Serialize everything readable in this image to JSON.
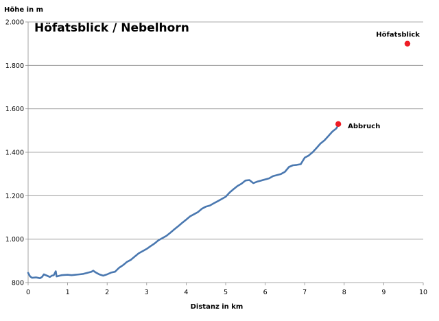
{
  "chart_data": {
    "type": "line",
    "title": "Höfatsblick / Nebelhorn",
    "xlabel": "Distanz in km",
    "ylabel": "Höhe in m",
    "xlim": [
      0,
      10
    ],
    "ylim": [
      800,
      2000
    ],
    "x_ticks": [
      "0",
      "1",
      "2",
      "3",
      "4",
      "5",
      "6",
      "7",
      "8",
      "9",
      "10"
    ],
    "y_ticks": [
      "800",
      "1.000",
      "1.200",
      "1.400",
      "1.600",
      "1.800",
      "2.000"
    ],
    "grid": "horizontal",
    "line_color": "#4a78b0",
    "marker_color": "#ee1c25",
    "series": [
      {
        "x": [
          0,
          0.05,
          0.1,
          0.2,
          0.3,
          0.35,
          0.4,
          0.5,
          0.55,
          0.6,
          0.65,
          0.7,
          0.72,
          0.8,
          0.85,
          0.9,
          1.0,
          1.1,
          1.2,
          1.3,
          1.4,
          1.5,
          1.6,
          1.65,
          1.7,
          1.8,
          1.9,
          2.0,
          2.1,
          2.2,
          2.3,
          2.4,
          2.5,
          2.6,
          2.7,
          2.8,
          2.9,
          3.0,
          3.1,
          3.2,
          3.3,
          3.4,
          3.5,
          3.6,
          3.7,
          3.8,
          3.9,
          4.0,
          4.1,
          4.2,
          4.3,
          4.4,
          4.5,
          4.6,
          4.7,
          4.8,
          4.9,
          5.0,
          5.1,
          5.2,
          5.3,
          5.4,
          5.5,
          5.6,
          5.7,
          5.8,
          5.9,
          6.0,
          6.1,
          6.2,
          6.3,
          6.4,
          6.5,
          6.6,
          6.7,
          6.8,
          6.9,
          7.0,
          7.1,
          7.2,
          7.3,
          7.4,
          7.5,
          7.6,
          7.7,
          7.8,
          7.85
        ],
        "y": [
          845,
          828,
          822,
          824,
          820,
          826,
          838,
          830,
          826,
          832,
          834,
          852,
          828,
          832,
          834,
          835,
          836,
          834,
          836,
          838,
          840,
          845,
          850,
          855,
          848,
          838,
          832,
          838,
          846,
          850,
          868,
          880,
          895,
          905,
          920,
          935,
          945,
          955,
          968,
          980,
          995,
          1005,
          1015,
          1030,
          1045,
          1060,
          1075,
          1090,
          1105,
          1115,
          1125,
          1140,
          1150,
          1155,
          1165,
          1175,
          1185,
          1195,
          1215,
          1230,
          1245,
          1255,
          1270,
          1272,
          1258,
          1265,
          1270,
          1275,
          1280,
          1290,
          1295,
          1300,
          1310,
          1332,
          1340,
          1342,
          1345,
          1375,
          1385,
          1400,
          1420,
          1440,
          1455,
          1475,
          1495,
          1510,
          1525
        ]
      }
    ],
    "points": [
      {
        "label": "Abbruch",
        "x": 7.85,
        "y": 1530
      },
      {
        "label": "Höfatsblick",
        "x": 9.6,
        "y": 1900
      }
    ]
  }
}
